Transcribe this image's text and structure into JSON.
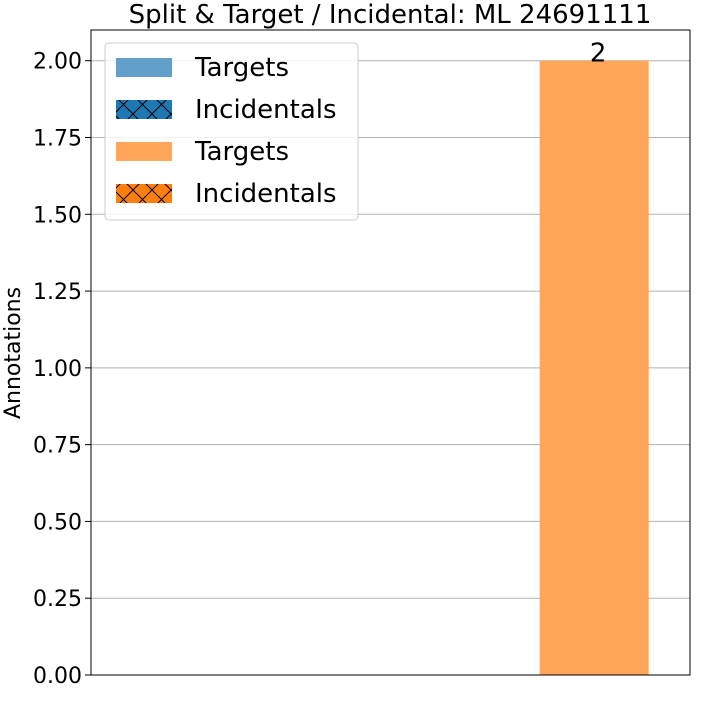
{
  "chart_data": {
    "type": "bar",
    "title": "Split & Target / Incidental: ML 24691111",
    "xlabel": "",
    "ylabel": "Annotations",
    "ylim": [
      0,
      2.1
    ],
    "yticks": [
      "0.00",
      "0.25",
      "0.50",
      "0.75",
      "1.00",
      "1.25",
      "1.50",
      "1.75",
      "2.00"
    ],
    "ytick_values": [
      0,
      0.25,
      0.5,
      0.75,
      1.0,
      1.25,
      1.5,
      1.75,
      2.0
    ],
    "grid": "horizontal",
    "categories": [
      "",
      ""
    ],
    "series": [
      {
        "name": "Targets",
        "color": "#62a0ca",
        "hatch": "none",
        "values": [
          0,
          0
        ]
      },
      {
        "name": "Incidentals",
        "color": "#1f77b4",
        "hatch": "cross",
        "values": [
          0,
          0
        ]
      },
      {
        "name": "Targets",
        "color": "#ffa65a",
        "hatch": "none",
        "values": [
          0,
          2
        ]
      },
      {
        "name": "Incidentals",
        "color": "#ff7f0e",
        "hatch": "cross",
        "values": [
          0,
          0
        ]
      }
    ],
    "data_labels": [
      {
        "category_index": 1,
        "value": 2,
        "text": "2"
      }
    ],
    "legend": {
      "placement": "top-left",
      "entries": [
        "Targets",
        "Incidentals",
        "Targets",
        "Incidentals"
      ]
    }
  }
}
